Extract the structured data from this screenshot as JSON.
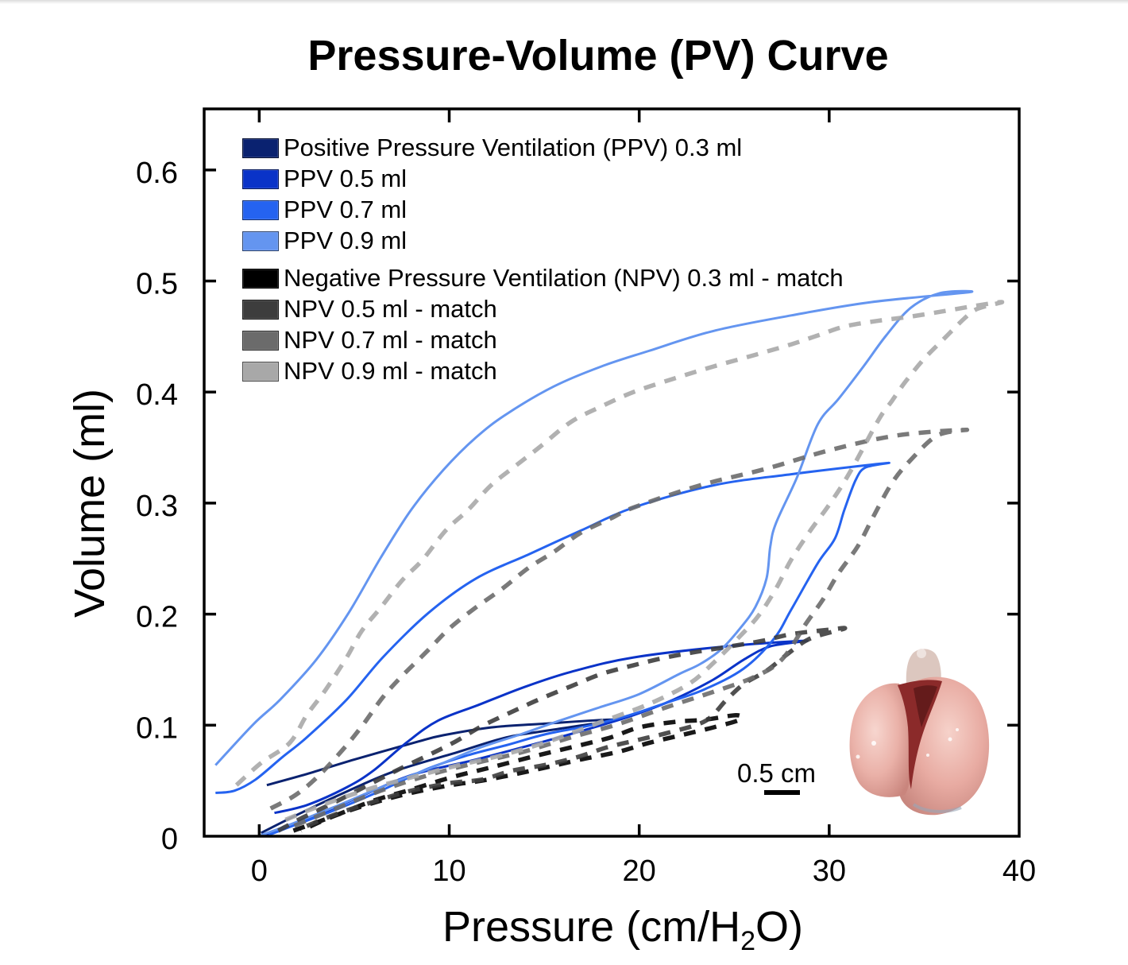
{
  "chart_data": {
    "type": "line",
    "title": "Pressure-Volume (PV) Curve",
    "xlabel": "Pressure (cm/H₂O)",
    "xlabel_parts": {
      "before": "Pressure (cm/H",
      "sub": "2",
      "after": "O)"
    },
    "ylabel": "Volume (ml)",
    "xlim": [
      -2.9,
      40
    ],
    "ylim": [
      0,
      0.655
    ],
    "xticks": [
      0,
      10,
      20,
      30,
      40
    ],
    "xtick_labels": [
      "0",
      "10",
      "20",
      "30",
      "40"
    ],
    "yticks": [
      0,
      0.1,
      0.2,
      0.3,
      0.4,
      0.5,
      0.6
    ],
    "ytick_labels": [
      "0",
      "0.1",
      "0.2",
      "0.3",
      "0.4",
      "0.5",
      "0.6"
    ],
    "grid": false,
    "legend_position": "top-left",
    "scale_bar": {
      "label": "0.5 cm"
    },
    "inset": "photograph of excised lung",
    "series": [
      {
        "id": "ppv-0-3",
        "name": "Positive Pressure Ventilation (PPV) 0.3 ml",
        "color": "#0a2270",
        "style": "solid",
        "points": [
          [
            0.4,
            0.046
          ],
          [
            2.5,
            0.056
          ],
          [
            5.0,
            0.069
          ],
          [
            8.3,
            0.085
          ],
          [
            9.7,
            0.091
          ],
          [
            12.2,
            0.098
          ],
          [
            14.7,
            0.101
          ],
          [
            18.7,
            0.105
          ],
          [
            15.5,
            0.096
          ],
          [
            13.0,
            0.089
          ],
          [
            10.5,
            0.076
          ],
          [
            7.2,
            0.059
          ],
          [
            4.7,
            0.041
          ],
          [
            2.2,
            0.021
          ],
          [
            0.1,
            0.003
          ]
        ]
      },
      {
        "id": "ppv-0-5",
        "name": "PPV 0.5 ml",
        "color": "#0a33c8",
        "style": "solid",
        "points": [
          [
            0.8,
            0.021
          ],
          [
            2.5,
            0.028
          ],
          [
            4.6,
            0.044
          ],
          [
            6.0,
            0.059
          ],
          [
            7.8,
            0.085
          ],
          [
            9.4,
            0.104
          ],
          [
            11.5,
            0.118
          ],
          [
            13.9,
            0.134
          ],
          [
            16.4,
            0.148
          ],
          [
            19.7,
            0.161
          ],
          [
            24.6,
            0.171
          ],
          [
            28.8,
            0.176
          ],
          [
            26.9,
            0.171
          ],
          [
            25.5,
            0.159
          ],
          [
            23.9,
            0.141
          ],
          [
            21.8,
            0.123
          ],
          [
            19.7,
            0.109
          ],
          [
            17.2,
            0.096
          ],
          [
            14.7,
            0.084
          ],
          [
            11.4,
            0.069
          ],
          [
            8.0,
            0.055
          ],
          [
            5.1,
            0.034
          ],
          [
            2.6,
            0.016
          ],
          [
            0.3,
            0.001
          ]
        ]
      },
      {
        "id": "ppv-0-7",
        "name": "PPV 0.7 ml",
        "color": "#2563f0",
        "style": "solid",
        "points": [
          [
            -2.3,
            0.039
          ],
          [
            -1.3,
            0.041
          ],
          [
            -0.2,
            0.051
          ],
          [
            1.2,
            0.071
          ],
          [
            2.5,
            0.089
          ],
          [
            4.6,
            0.123
          ],
          [
            6.5,
            0.161
          ],
          [
            8.9,
            0.201
          ],
          [
            11.4,
            0.232
          ],
          [
            14.2,
            0.254
          ],
          [
            16.9,
            0.275
          ],
          [
            19.7,
            0.296
          ],
          [
            23.9,
            0.316
          ],
          [
            28.0,
            0.326
          ],
          [
            33.0,
            0.336
          ],
          [
            31.9,
            0.332
          ],
          [
            31.4,
            0.321
          ],
          [
            30.8,
            0.294
          ],
          [
            30.3,
            0.268
          ],
          [
            29.4,
            0.246
          ],
          [
            28.0,
            0.204
          ],
          [
            27.1,
            0.178
          ],
          [
            25.5,
            0.151
          ],
          [
            23.4,
            0.132
          ],
          [
            21.4,
            0.12
          ],
          [
            19.3,
            0.108
          ],
          [
            17.2,
            0.099
          ],
          [
            15.1,
            0.092
          ],
          [
            13.0,
            0.082
          ],
          [
            11.0,
            0.073
          ],
          [
            8.9,
            0.061
          ],
          [
            6.4,
            0.041
          ],
          [
            3.9,
            0.023
          ],
          [
            1.4,
            0.007
          ],
          [
            0.5,
            0.001
          ]
        ]
      },
      {
        "id": "ppv-0-9",
        "name": "PPV 0.9 ml",
        "color": "#6495f0",
        "style": "solid",
        "points": [
          [
            -2.3,
            0.064
          ],
          [
            -0.3,
            0.101
          ],
          [
            1.1,
            0.123
          ],
          [
            3.0,
            0.159
          ],
          [
            4.7,
            0.201
          ],
          [
            6.4,
            0.251
          ],
          [
            8.0,
            0.294
          ],
          [
            9.7,
            0.33
          ],
          [
            11.4,
            0.359
          ],
          [
            13.0,
            0.38
          ],
          [
            15.5,
            0.405
          ],
          [
            18.0,
            0.423
          ],
          [
            20.5,
            0.437
          ],
          [
            23.9,
            0.455
          ],
          [
            28.0,
            0.469
          ],
          [
            32.2,
            0.481
          ],
          [
            37.4,
            0.49
          ],
          [
            35.8,
            0.489
          ],
          [
            34.3,
            0.476
          ],
          [
            33.0,
            0.451
          ],
          [
            31.8,
            0.423
          ],
          [
            30.5,
            0.394
          ],
          [
            29.4,
            0.371
          ],
          [
            28.3,
            0.323
          ],
          [
            27.2,
            0.282
          ],
          [
            26.9,
            0.261
          ],
          [
            26.7,
            0.232
          ],
          [
            26.1,
            0.206
          ],
          [
            25.3,
            0.187
          ],
          [
            24.3,
            0.168
          ],
          [
            23.2,
            0.155
          ],
          [
            22.1,
            0.146
          ],
          [
            20.0,
            0.128
          ],
          [
            17.9,
            0.116
          ],
          [
            15.8,
            0.104
          ],
          [
            13.8,
            0.092
          ],
          [
            11.5,
            0.079
          ],
          [
            9.4,
            0.064
          ],
          [
            6.4,
            0.044
          ],
          [
            3.9,
            0.026
          ],
          [
            1.4,
            0.009
          ],
          [
            0.1,
            0.001
          ]
        ]
      },
      {
        "id": "npv-0-3",
        "name": "Negative Pressure Ventilation (NPV) 0.3 ml - match",
        "color": "#000000",
        "style": "dashed",
        "points": [
          [
            1.8,
            0.005
          ],
          [
            3.9,
            0.018
          ],
          [
            6.0,
            0.032
          ],
          [
            8.0,
            0.042
          ],
          [
            10.1,
            0.053
          ],
          [
            12.2,
            0.062
          ],
          [
            14.7,
            0.073
          ],
          [
            16.9,
            0.082
          ],
          [
            18.5,
            0.089
          ],
          [
            20.0,
            0.098
          ],
          [
            21.9,
            0.103
          ],
          [
            23.5,
            0.105
          ],
          [
            25.1,
            0.109
          ],
          [
            25.3,
            0.105
          ],
          [
            23.9,
            0.098
          ],
          [
            22.2,
            0.091
          ],
          [
            20.5,
            0.084
          ],
          [
            18.9,
            0.076
          ],
          [
            16.9,
            0.069
          ],
          [
            15.1,
            0.062
          ],
          [
            13.5,
            0.056
          ],
          [
            11.7,
            0.05
          ],
          [
            10.1,
            0.046
          ],
          [
            8.0,
            0.039
          ],
          [
            6.0,
            0.03
          ],
          [
            3.9,
            0.018
          ],
          [
            2.2,
            0.005
          ]
        ]
      },
      {
        "id": "npv-0-5",
        "name": "NPV 0.5 ml - match",
        "color": "#3d3d3d",
        "style": "dashed",
        "points": [
          [
            1.0,
            0.005
          ],
          [
            2.2,
            0.016
          ],
          [
            3.9,
            0.03
          ],
          [
            5.5,
            0.044
          ],
          [
            7.2,
            0.059
          ],
          [
            8.9,
            0.073
          ],
          [
            10.3,
            0.085
          ],
          [
            11.7,
            0.099
          ],
          [
            13.3,
            0.112
          ],
          [
            14.7,
            0.123
          ],
          [
            16.4,
            0.135
          ],
          [
            18.0,
            0.146
          ],
          [
            19.7,
            0.154
          ],
          [
            21.4,
            0.161
          ],
          [
            23.0,
            0.166
          ],
          [
            24.8,
            0.171
          ],
          [
            26.5,
            0.176
          ],
          [
            28.0,
            0.182
          ],
          [
            30.0,
            0.186
          ],
          [
            30.8,
            0.187
          ],
          [
            29.0,
            0.178
          ],
          [
            27.8,
            0.164
          ],
          [
            26.7,
            0.149
          ],
          [
            25.5,
            0.137
          ],
          [
            24.6,
            0.123
          ],
          [
            23.5,
            0.104
          ],
          [
            21.7,
            0.094
          ],
          [
            20.0,
            0.087
          ],
          [
            18.3,
            0.08
          ],
          [
            16.7,
            0.071
          ],
          [
            15.0,
            0.064
          ],
          [
            13.3,
            0.059
          ],
          [
            11.7,
            0.051
          ],
          [
            10.1,
            0.048
          ],
          [
            8.0,
            0.041
          ],
          [
            6.0,
            0.031
          ],
          [
            3.9,
            0.019
          ],
          [
            2.2,
            0.007
          ]
        ]
      },
      {
        "id": "npv-0-7",
        "name": "NPV 0.7 ml - match",
        "color": "#6b6b6b",
        "style": "dashed",
        "points": [
          [
            0.6,
            0.025
          ],
          [
            1.9,
            0.037
          ],
          [
            3.1,
            0.054
          ],
          [
            4.4,
            0.078
          ],
          [
            5.4,
            0.099
          ],
          [
            6.5,
            0.125
          ],
          [
            7.5,
            0.144
          ],
          [
            8.8,
            0.166
          ],
          [
            10.0,
            0.187
          ],
          [
            11.4,
            0.206
          ],
          [
            12.8,
            0.223
          ],
          [
            14.2,
            0.242
          ],
          [
            15.5,
            0.256
          ],
          [
            16.9,
            0.273
          ],
          [
            18.6,
            0.287
          ],
          [
            19.7,
            0.296
          ],
          [
            23.2,
            0.316
          ],
          [
            26.7,
            0.331
          ],
          [
            30.1,
            0.348
          ],
          [
            33.6,
            0.361
          ],
          [
            37.2,
            0.366
          ],
          [
            35.7,
            0.361
          ],
          [
            34.3,
            0.339
          ],
          [
            33.3,
            0.318
          ],
          [
            32.3,
            0.287
          ],
          [
            31.5,
            0.261
          ],
          [
            30.5,
            0.237
          ],
          [
            29.7,
            0.214
          ],
          [
            28.8,
            0.192
          ],
          [
            27.5,
            0.159
          ],
          [
            26.0,
            0.143
          ],
          [
            23.9,
            0.13
          ],
          [
            21.4,
            0.116
          ],
          [
            18.9,
            0.101
          ],
          [
            16.4,
            0.089
          ],
          [
            13.9,
            0.076
          ],
          [
            11.4,
            0.066
          ],
          [
            8.9,
            0.055
          ],
          [
            6.4,
            0.041
          ],
          [
            3.9,
            0.024
          ],
          [
            1.8,
            0.009
          ]
        ]
      },
      {
        "id": "npv-0-9",
        "name": "NPV 0.9 ml - match",
        "color": "#a8a8a8",
        "style": "dashed",
        "points": [
          [
            -1.2,
            0.046
          ],
          [
            0.1,
            0.066
          ],
          [
            1.6,
            0.084
          ],
          [
            2.5,
            0.109
          ],
          [
            3.5,
            0.132
          ],
          [
            4.6,
            0.161
          ],
          [
            5.4,
            0.185
          ],
          [
            6.4,
            0.206
          ],
          [
            7.5,
            0.23
          ],
          [
            8.6,
            0.249
          ],
          [
            9.8,
            0.275
          ],
          [
            11.0,
            0.294
          ],
          [
            12.2,
            0.316
          ],
          [
            13.6,
            0.335
          ],
          [
            14.8,
            0.351
          ],
          [
            16.4,
            0.373
          ],
          [
            18.0,
            0.387
          ],
          [
            19.7,
            0.4
          ],
          [
            21.8,
            0.412
          ],
          [
            23.9,
            0.423
          ],
          [
            26.0,
            0.433
          ],
          [
            28.0,
            0.443
          ],
          [
            29.4,
            0.451
          ],
          [
            30.8,
            0.459
          ],
          [
            32.5,
            0.464
          ],
          [
            34.3,
            0.468
          ],
          [
            36.1,
            0.473
          ],
          [
            37.8,
            0.478
          ],
          [
            39.1,
            0.481
          ],
          [
            37.8,
            0.475
          ],
          [
            37.1,
            0.466
          ],
          [
            36.1,
            0.449
          ],
          [
            35.0,
            0.43
          ],
          [
            34.0,
            0.409
          ],
          [
            33.3,
            0.392
          ],
          [
            32.6,
            0.375
          ],
          [
            31.1,
            0.328
          ],
          [
            30.1,
            0.301
          ],
          [
            29.0,
            0.275
          ],
          [
            28.0,
            0.249
          ],
          [
            27.2,
            0.223
          ],
          [
            26.3,
            0.199
          ],
          [
            25.3,
            0.18
          ],
          [
            23.9,
            0.156
          ],
          [
            22.6,
            0.137
          ],
          [
            20.5,
            0.119
          ],
          [
            18.0,
            0.103
          ],
          [
            15.5,
            0.087
          ],
          [
            13.0,
            0.074
          ],
          [
            10.5,
            0.064
          ],
          [
            8.0,
            0.053
          ],
          [
            5.5,
            0.041
          ],
          [
            3.0,
            0.026
          ],
          [
            1.0,
            0.012
          ]
        ]
      }
    ]
  }
}
